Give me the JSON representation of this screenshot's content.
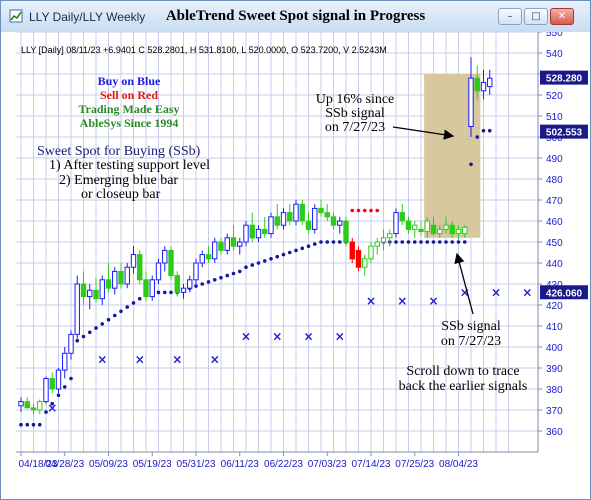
{
  "window": {
    "tab_title": "LLY Daily/LLY Weekly",
    "title": "AbleTrend Sweet Spot signal in Progress"
  },
  "header_line": "LLY [Daily] 08/11/23  +6.9401  C 528.2801, H 531.8100, L 520.0000, O 523.7200, V 2.5243M",
  "legend": {
    "buy": "Buy on Blue",
    "sell": "Sell on Red",
    "tagline1": "Trading Made Easy",
    "tagline2": "AbleSys Since 1994"
  },
  "sweet_spot": [
    "Sweet Spot for Buying (SSb)",
    "1) After testing support level",
    "2) Emerging blue bar",
    "or closeup bar"
  ],
  "annotations": {
    "up_note": [
      "Up 16% since",
      "SSb signal",
      "on 7/27/23"
    ],
    "ssb_note": [
      "SSb signal",
      "on 7/27/23"
    ],
    "scroll_note": [
      "Scroll down to trace",
      "back the earlier signals"
    ]
  },
  "colors": {
    "blue_bar": "#1a1aff",
    "red_bar": "#ff0000",
    "green_bar": "#2ecc1a",
    "stop_dot": "#1616a0",
    "signal_x": "#1e1ed0",
    "highlight_box": "#d8c8a0",
    "grid": "#c8ccee",
    "axis_text": "#1a1ac8"
  },
  "chart_data": {
    "type": "candlestick",
    "symbol": "LLY",
    "interval": "Daily",
    "y_axis": {
      "min": 350,
      "max": 550,
      "ticks": [
        360,
        370,
        380,
        390,
        400,
        410,
        420,
        430,
        440,
        450,
        460,
        470,
        480,
        490,
        500,
        510,
        520,
        530,
        540,
        550
      ],
      "tick_labels": [
        "360",
        "370",
        "380",
        "390",
        "400",
        "410",
        "420",
        "430",
        "440",
        "450",
        "460",
        "470",
        "480",
        "490",
        "500",
        "510",
        "520",
        "530",
        "540",
        "550"
      ]
    },
    "x_axis": {
      "tick_labels": [
        "04/18/23",
        "04/28/23",
        "05/09/23",
        "05/19/23",
        "05/31/23",
        "06/11/23",
        "06/22/23",
        "07/03/23",
        "07/14/23",
        "07/25/23",
        "08/04/23"
      ],
      "tick_index": [
        0,
        7,
        14,
        21,
        28,
        35,
        42,
        49,
        56,
        63,
        70
      ]
    },
    "price_labels": [
      {
        "value": 528.28,
        "text": "528.280"
      },
      {
        "value": 502.553,
        "text": "502.553"
      },
      {
        "value": 426.06,
        "text": "426.060"
      }
    ],
    "highlight_box": {
      "x_start": 64.5,
      "x_end": 73.5,
      "y_low": 452,
      "y_high": 530
    },
    "candles": [
      {
        "o": 372,
        "h": 376,
        "l": 369,
        "c": 374,
        "color": "blue"
      },
      {
        "o": 374,
        "h": 376,
        "l": 371,
        "c": 371,
        "color": "green"
      },
      {
        "o": 371,
        "h": 373,
        "l": 368,
        "c": 370,
        "color": "green"
      },
      {
        "o": 370,
        "h": 375,
        "l": 368,
        "c": 374,
        "color": "green"
      },
      {
        "o": 374,
        "h": 386,
        "l": 373,
        "c": 385,
        "color": "blue"
      },
      {
        "o": 385,
        "h": 388,
        "l": 378,
        "c": 380,
        "color": "green"
      },
      {
        "o": 380,
        "h": 390,
        "l": 378,
        "c": 389,
        "color": "blue"
      },
      {
        "o": 389,
        "h": 400,
        "l": 385,
        "c": 397,
        "color": "blue"
      },
      {
        "o": 397,
        "h": 408,
        "l": 394,
        "c": 406,
        "color": "blue"
      },
      {
        "o": 406,
        "h": 434,
        "l": 404,
        "c": 430,
        "color": "blue"
      },
      {
        "o": 430,
        "h": 436,
        "l": 420,
        "c": 424,
        "color": "green"
      },
      {
        "o": 424,
        "h": 430,
        "l": 418,
        "c": 427,
        "color": "blue"
      },
      {
        "o": 427,
        "h": 433,
        "l": 421,
        "c": 423,
        "color": "green"
      },
      {
        "o": 423,
        "h": 434,
        "l": 420,
        "c": 432,
        "color": "blue"
      },
      {
        "o": 432,
        "h": 440,
        "l": 426,
        "c": 428,
        "color": "green"
      },
      {
        "o": 428,
        "h": 438,
        "l": 425,
        "c": 436,
        "color": "blue"
      },
      {
        "o": 436,
        "h": 440,
        "l": 428,
        "c": 430,
        "color": "green"
      },
      {
        "o": 430,
        "h": 440,
        "l": 428,
        "c": 438,
        "color": "blue"
      },
      {
        "o": 438,
        "h": 448,
        "l": 435,
        "c": 444,
        "color": "blue"
      },
      {
        "o": 444,
        "h": 446,
        "l": 430,
        "c": 432,
        "color": "green"
      },
      {
        "o": 432,
        "h": 436,
        "l": 422,
        "c": 424,
        "color": "green"
      },
      {
        "o": 424,
        "h": 434,
        "l": 422,
        "c": 432,
        "color": "blue"
      },
      {
        "o": 432,
        "h": 442,
        "l": 430,
        "c": 440,
        "color": "blue"
      },
      {
        "o": 440,
        "h": 448,
        "l": 436,
        "c": 446,
        "color": "blue"
      },
      {
        "o": 446,
        "h": 448,
        "l": 432,
        "c": 434,
        "color": "green"
      },
      {
        "o": 434,
        "h": 436,
        "l": 424,
        "c": 426,
        "color": "green"
      },
      {
        "o": 426,
        "h": 430,
        "l": 423,
        "c": 428,
        "color": "blue"
      },
      {
        "o": 428,
        "h": 434,
        "l": 426,
        "c": 432,
        "color": "blue"
      },
      {
        "o": 432,
        "h": 442,
        "l": 430,
        "c": 440,
        "color": "blue"
      },
      {
        "o": 440,
        "h": 446,
        "l": 438,
        "c": 444,
        "color": "blue"
      },
      {
        "o": 444,
        "h": 448,
        "l": 440,
        "c": 442,
        "color": "green"
      },
      {
        "o": 442,
        "h": 452,
        "l": 440,
        "c": 450,
        "color": "blue"
      },
      {
        "o": 450,
        "h": 452,
        "l": 444,
        "c": 446,
        "color": "green"
      },
      {
        "o": 446,
        "h": 454,
        "l": 444,
        "c": 452,
        "color": "blue"
      },
      {
        "o": 452,
        "h": 458,
        "l": 446,
        "c": 448,
        "color": "green"
      },
      {
        "o": 448,
        "h": 452,
        "l": 444,
        "c": 450,
        "color": "blue"
      },
      {
        "o": 450,
        "h": 460,
        "l": 448,
        "c": 458,
        "color": "blue"
      },
      {
        "o": 458,
        "h": 464,
        "l": 450,
        "c": 452,
        "color": "green"
      },
      {
        "o": 452,
        "h": 458,
        "l": 450,
        "c": 456,
        "color": "blue"
      },
      {
        "o": 456,
        "h": 462,
        "l": 452,
        "c": 454,
        "color": "green"
      },
      {
        "o": 454,
        "h": 464,
        "l": 452,
        "c": 462,
        "color": "blue"
      },
      {
        "o": 462,
        "h": 468,
        "l": 456,
        "c": 458,
        "color": "green"
      },
      {
        "o": 458,
        "h": 466,
        "l": 456,
        "c": 464,
        "color": "blue"
      },
      {
        "o": 464,
        "h": 468,
        "l": 458,
        "c": 460,
        "color": "green"
      },
      {
        "o": 460,
        "h": 470,
        "l": 458,
        "c": 468,
        "color": "blue"
      },
      {
        "o": 468,
        "h": 470,
        "l": 458,
        "c": 460,
        "color": "green"
      },
      {
        "o": 460,
        "h": 464,
        "l": 454,
        "c": 456,
        "color": "green"
      },
      {
        "o": 456,
        "h": 468,
        "l": 454,
        "c": 466,
        "color": "blue"
      },
      {
        "o": 466,
        "h": 470,
        "l": 462,
        "c": 464,
        "color": "green"
      },
      {
        "o": 464,
        "h": 468,
        "l": 460,
        "c": 462,
        "color": "green"
      },
      {
        "o": 462,
        "h": 464,
        "l": 456,
        "c": 458,
        "color": "green"
      },
      {
        "o": 458,
        "h": 462,
        "l": 454,
        "c": 460,
        "color": "blue"
      },
      {
        "o": 460,
        "h": 462,
        "l": 448,
        "c": 450,
        "color": "green"
      },
      {
        "o": 450,
        "h": 452,
        "l": 440,
        "c": 442,
        "color": "red"
      },
      {
        "o": 446,
        "h": 448,
        "l": 436,
        "c": 438,
        "color": "red"
      },
      {
        "o": 438,
        "h": 444,
        "l": 434,
        "c": 442,
        "color": "green"
      },
      {
        "o": 442,
        "h": 450,
        "l": 440,
        "c": 448,
        "color": "green"
      },
      {
        "o": 448,
        "h": 452,
        "l": 444,
        "c": 450,
        "color": "green"
      },
      {
        "o": 450,
        "h": 456,
        "l": 446,
        "c": 452,
        "color": "green"
      },
      {
        "o": 452,
        "h": 456,
        "l": 448,
        "c": 454,
        "color": "green"
      },
      {
        "o": 454,
        "h": 466,
        "l": 452,
        "c": 464,
        "color": "blue"
      },
      {
        "o": 464,
        "h": 468,
        "l": 458,
        "c": 460,
        "color": "green"
      },
      {
        "o": 460,
        "h": 462,
        "l": 454,
        "c": 456,
        "color": "green"
      },
      {
        "o": 456,
        "h": 460,
        "l": 452,
        "c": 458,
        "color": "green"
      },
      {
        "o": 456,
        "h": 460,
        "l": 453,
        "c": 455,
        "color": "green"
      },
      {
        "o": 455,
        "h": 462,
        "l": 452,
        "c": 460,
        "color": "green"
      },
      {
        "o": 458,
        "h": 462,
        "l": 453,
        "c": 454,
        "color": "green"
      },
      {
        "o": 454,
        "h": 458,
        "l": 452,
        "c": 456,
        "color": "green"
      },
      {
        "o": 456,
        "h": 462,
        "l": 454,
        "c": 458,
        "color": "green"
      },
      {
        "o": 458,
        "h": 460,
        "l": 452,
        "c": 454,
        "color": "green"
      },
      {
        "o": 454,
        "h": 458,
        "l": 451,
        "c": 456,
        "color": "green"
      },
      {
        "o": 454,
        "h": 458,
        "l": 452,
        "c": 457,
        "color": "green"
      },
      {
        "o": 505,
        "h": 538,
        "l": 500,
        "c": 528,
        "color": "blue"
      },
      {
        "o": 528,
        "h": 534,
        "l": 518,
        "c": 522,
        "color": "green"
      },
      {
        "o": 522,
        "h": 532,
        "l": 518,
        "c": 526,
        "color": "blue"
      },
      {
        "o": 524,
        "h": 532,
        "l": 520,
        "c": 528,
        "color": "blue"
      }
    ],
    "stop_dots": [
      {
        "x": 0,
        "y": 363
      },
      {
        "x": 1,
        "y": 363
      },
      {
        "x": 2,
        "y": 363
      },
      {
        "x": 3,
        "y": 363
      },
      {
        "x": 4,
        "y": 369
      },
      {
        "x": 5,
        "y": 373
      },
      {
        "x": 6,
        "y": 377
      },
      {
        "x": 7,
        "y": 381
      },
      {
        "x": 8,
        "y": 385
      },
      {
        "x": 9,
        "y": 403
      },
      {
        "x": 10,
        "y": 405
      },
      {
        "x": 11,
        "y": 407
      },
      {
        "x": 12,
        "y": 409
      },
      {
        "x": 13,
        "y": 411
      },
      {
        "x": 14,
        "y": 413
      },
      {
        "x": 15,
        "y": 415
      },
      {
        "x": 16,
        "y": 417
      },
      {
        "x": 17,
        "y": 419
      },
      {
        "x": 18,
        "y": 421
      },
      {
        "x": 19,
        "y": 423
      },
      {
        "x": 20,
        "y": 425
      },
      {
        "x": 21,
        "y": 426
      },
      {
        "x": 22,
        "y": 426
      },
      {
        "x": 23,
        "y": 426
      },
      {
        "x": 24,
        "y": 426
      },
      {
        "x": 25,
        "y": 426
      },
      {
        "x": 26,
        "y": 427
      },
      {
        "x": 27,
        "y": 428
      },
      {
        "x": 28,
        "y": 429
      },
      {
        "x": 29,
        "y": 430
      },
      {
        "x": 30,
        "y": 431
      },
      {
        "x": 31,
        "y": 432
      },
      {
        "x": 32,
        "y": 433
      },
      {
        "x": 33,
        "y": 434
      },
      {
        "x": 34,
        "y": 435
      },
      {
        "x": 35,
        "y": 436
      },
      {
        "x": 36,
        "y": 438
      },
      {
        "x": 37,
        "y": 439
      },
      {
        "x": 38,
        "y": 440
      },
      {
        "x": 39,
        "y": 441
      },
      {
        "x": 40,
        "y": 442
      },
      {
        "x": 41,
        "y": 443
      },
      {
        "x": 42,
        "y": 444
      },
      {
        "x": 43,
        "y": 445
      },
      {
        "x": 44,
        "y": 446
      },
      {
        "x": 45,
        "y": 447
      },
      {
        "x": 46,
        "y": 448
      },
      {
        "x": 47,
        "y": 449
      },
      {
        "x": 48,
        "y": 450
      },
      {
        "x": 49,
        "y": 450
      },
      {
        "x": 50,
        "y": 450
      },
      {
        "x": 51,
        "y": 450
      },
      {
        "x": 52,
        "y": 450
      },
      {
        "x": 58,
        "y": 450
      },
      {
        "x": 59,
        "y": 450
      },
      {
        "x": 60,
        "y": 450
      },
      {
        "x": 61,
        "y": 450
      },
      {
        "x": 62,
        "y": 450
      },
      {
        "x": 63,
        "y": 450
      },
      {
        "x": 64,
        "y": 450
      },
      {
        "x": 65,
        "y": 450
      },
      {
        "x": 66,
        "y": 450
      },
      {
        "x": 67,
        "y": 450
      },
      {
        "x": 68,
        "y": 450
      },
      {
        "x": 69,
        "y": 450
      },
      {
        "x": 70,
        "y": 450
      },
      {
        "x": 71,
        "y": 450
      },
      {
        "x": 72,
        "y": 487
      },
      {
        "x": 73,
        "y": 500
      },
      {
        "x": 74,
        "y": 503
      },
      {
        "x": 75,
        "y": 503
      }
    ],
    "sell_dots": [
      {
        "x": 53,
        "y": 465
      },
      {
        "x": 54,
        "y": 465
      },
      {
        "x": 55,
        "y": 465
      },
      {
        "x": 56,
        "y": 465
      },
      {
        "x": 57,
        "y": 465
      }
    ],
    "x_signals": [
      {
        "x": 5,
        "y": 371
      },
      {
        "x": 13,
        "y": 394
      },
      {
        "x": 19,
        "y": 394
      },
      {
        "x": 25,
        "y": 394
      },
      {
        "x": 31,
        "y": 394
      },
      {
        "x": 36,
        "y": 405
      },
      {
        "x": 41,
        "y": 405
      },
      {
        "x": 46,
        "y": 405
      },
      {
        "x": 51,
        "y": 405
      },
      {
        "x": 56,
        "y": 422
      },
      {
        "x": 61,
        "y": 422
      },
      {
        "x": 66,
        "y": 422
      },
      {
        "x": 71,
        "y": 426
      },
      {
        "x": 76,
        "y": 426
      },
      {
        "x": 81,
        "y": 426
      }
    ]
  }
}
